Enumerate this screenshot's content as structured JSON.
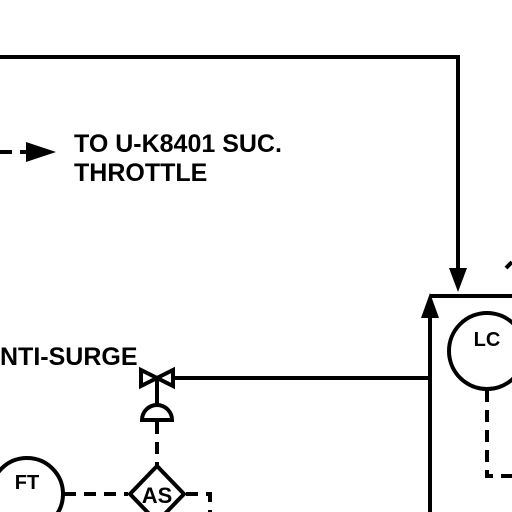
{
  "labels": {
    "to_line1": "TO U-K8401 SUC.",
    "to_line2": "THROTTLE",
    "anti_surge": "NTI-SURGE"
  },
  "instruments": {
    "lc": "LC",
    "ft": "FT",
    "as": "AS"
  }
}
